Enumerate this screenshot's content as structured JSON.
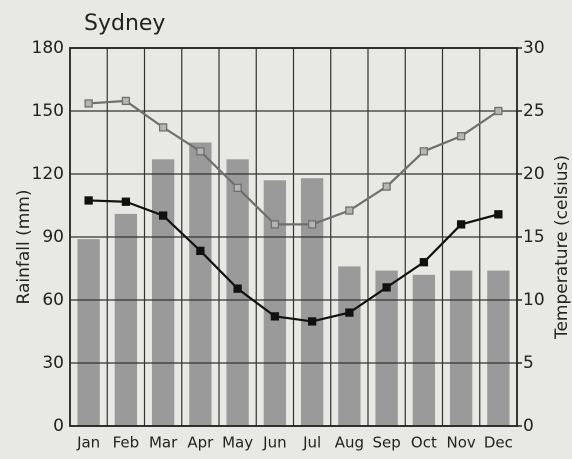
{
  "chart_data": {
    "type": "bar",
    "title": "Sydney",
    "y_label": "Rainfall (mm)",
    "y2_label": "Temperature (celsius)",
    "categories": [
      "Jan",
      "Feb",
      "Mar",
      "Apr",
      "May",
      "Jun",
      "Jul",
      "Aug",
      "Sep",
      "Oct",
      "Nov",
      "Dec"
    ],
    "series": [
      {
        "type": "bar",
        "color": "#9a9a9a",
        "axis": "y",
        "values": [
          89,
          101,
          127,
          135,
          127,
          117,
          118,
          76,
          74,
          72,
          74,
          74
        ]
      },
      {
        "type": "line",
        "color": "#6f6f6f",
        "axis": "y2",
        "values": [
          25.6,
          25.8,
          23.7,
          21.8,
          18.9,
          16.0,
          16.0,
          17.1,
          19.0,
          21.8,
          23.0,
          25.0
        ]
      },
      {
        "type": "line",
        "color": "#111111",
        "axis": "y2",
        "values": [
          17.9,
          17.8,
          16.7,
          13.9,
          10.9,
          8.7,
          8.3,
          9.0,
          11.0,
          13.0,
          16.0,
          16.8
        ]
      }
    ],
    "ylim": [
      0,
      180
    ],
    "yticks": [
      0,
      30,
      60,
      90,
      120,
      150,
      180
    ],
    "y2lim": [
      0,
      30
    ],
    "y2ticks": [
      0,
      5,
      10,
      15,
      20,
      25,
      30
    ],
    "grid": true
  }
}
